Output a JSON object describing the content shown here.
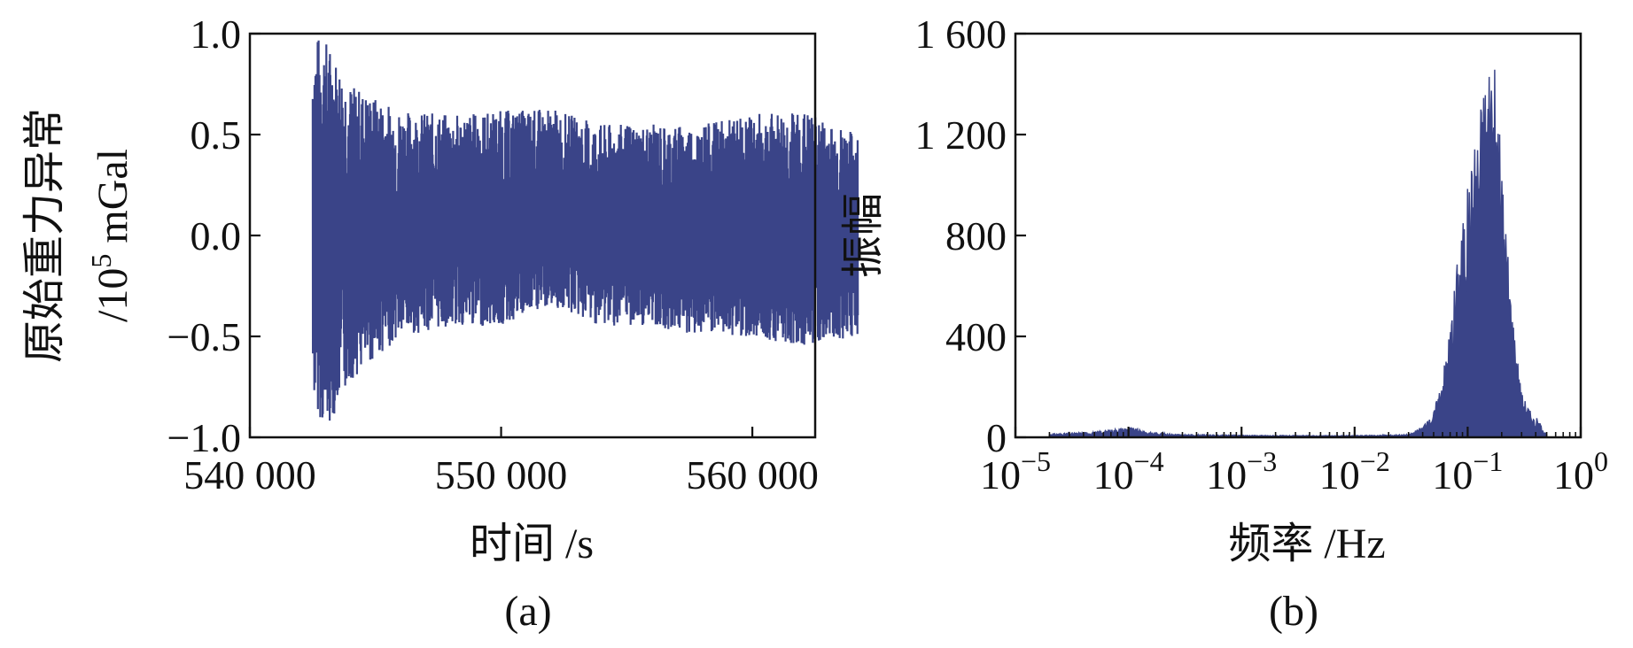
{
  "figure": {
    "panels": [
      {
        "id": "a",
        "panel_label": "(a)",
        "xlabel": "时间 /s",
        "ylabel_line1": "原始重力异常",
        "ylabel_line2_prefix": "/10",
        "ylabel_line2_sup": "5",
        "ylabel_line2_suffix": " mGal"
      },
      {
        "id": "b",
        "panel_label": "(b)",
        "xlabel": "频率 /Hz",
        "ylabel": "振幅"
      }
    ]
  },
  "chart_data": [
    {
      "type": "line",
      "panel": "(a)",
      "title": "",
      "xlabel": "时间 /s",
      "ylabel": "原始重力异常 /10^5 mGal",
      "xlim": [
        540000,
        562500
      ],
      "ylim": [
        -1.0,
        1.0
      ],
      "xticks": [
        540000,
        550000,
        560000
      ],
      "xtick_labels": [
        "540 000",
        "550 000",
        "560 000"
      ],
      "yticks": [
        -1.0,
        -0.5,
        0.0,
        0.5,
        1.0
      ],
      "ytick_labels": [
        "−1.0",
        "−0.5",
        "0.0",
        "0.5",
        "1.0"
      ],
      "color": "#3a4488",
      "grid": false,
      "series": [
        {
          "x_start": 542500,
          "x_end": 564200,
          "envelope_x": [
            542500,
            543000,
            544000,
            546000,
            548000,
            550000,
            552000,
            554000,
            556000,
            558000,
            560000,
            562000,
            564200
          ],
          "envelope_upper": [
            1.0,
            0.98,
            0.75,
            0.62,
            0.6,
            0.62,
            0.63,
            0.55,
            0.55,
            0.55,
            0.6,
            0.62,
            0.5
          ],
          "envelope_lower": [
            -0.8,
            -0.98,
            -0.72,
            -0.5,
            -0.45,
            -0.45,
            -0.35,
            -0.45,
            -0.45,
            -0.5,
            -0.5,
            -0.55,
            -0.5
          ]
        }
      ]
    },
    {
      "type": "area",
      "panel": "(b)",
      "title": "",
      "xlabel": "频率 /Hz",
      "ylabel": "振幅",
      "xscale": "log",
      "xlim": [
        1e-05,
        1
      ],
      "ylim": [
        0,
        1600
      ],
      "xtick_labels": [
        {
          "base": "10",
          "exp": "−5"
        },
        {
          "base": "10",
          "exp": "−4"
        },
        {
          "base": "10",
          "exp": "−3"
        },
        {
          "base": "10",
          "exp": "−2"
        },
        {
          "base": "10",
          "exp": "−1"
        },
        {
          "base": "10",
          "exp": "0"
        }
      ],
      "yticks": [
        0,
        400,
        800,
        1200,
        1600
      ],
      "ytick_labels": [
        "0",
        "400",
        "800",
        "1 200",
        "1 600"
      ],
      "color": "#3a4488",
      "grid": false,
      "series": [
        {
          "x": [
            2e-05,
            5e-05,
            0.0001,
            0.00015,
            0.0003,
            0.001,
            0.003,
            0.01,
            0.03,
            0.04,
            0.05,
            0.06,
            0.07,
            0.08,
            0.1,
            0.12,
            0.14,
            0.16,
            0.18,
            0.2,
            0.25,
            0.3,
            0.4,
            0.5
          ],
          "values": [
            10,
            15,
            30,
            15,
            8,
            6,
            5,
            5,
            8,
            30,
            100,
            250,
            450,
            700,
            1000,
            1250,
            1450,
            1590,
            1400,
            1100,
            500,
            180,
            60,
            10
          ]
        }
      ]
    }
  ]
}
